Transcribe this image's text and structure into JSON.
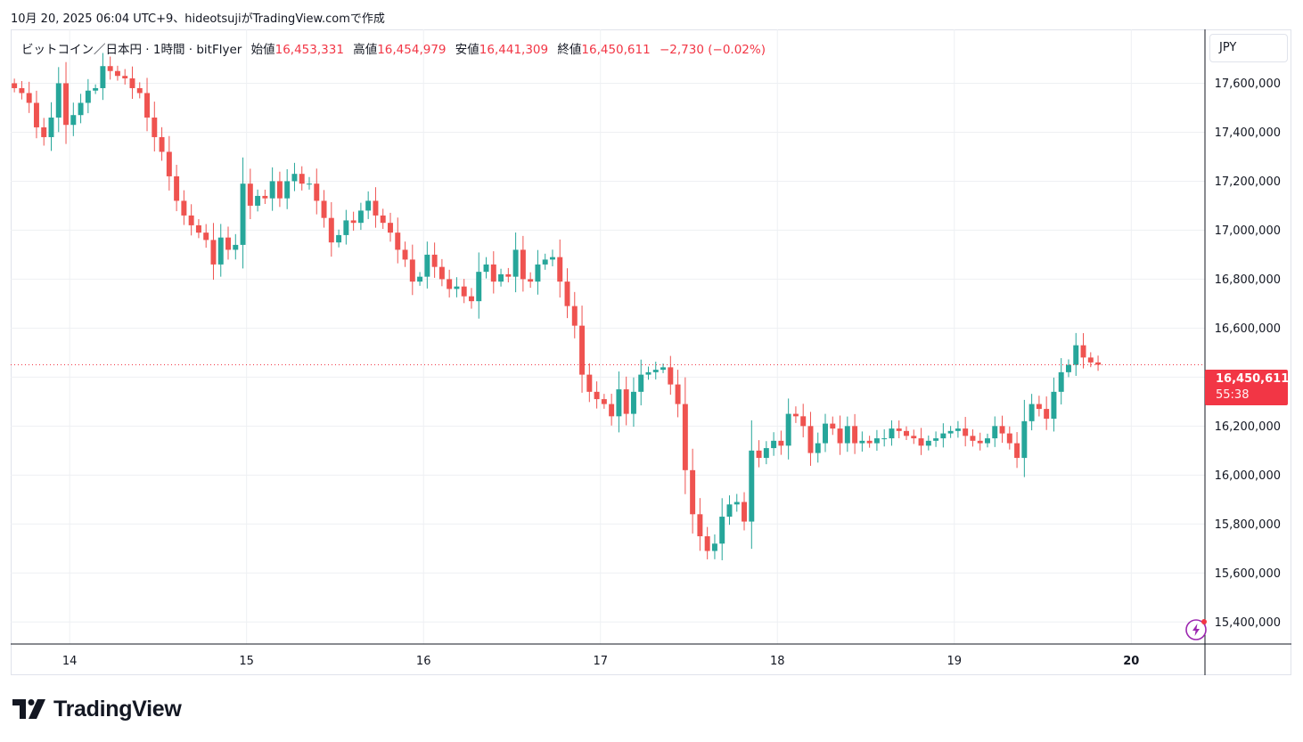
{
  "header": {
    "caption": "10月 20, 2025 06:04 UTC+9、hideotsujiがTradingView.comで作成"
  },
  "legend": {
    "symbol": "ビットコイン／日本円 · 1時間 · bitFlyer",
    "open_label": "始値",
    "open_value": "16,453,331",
    "high_label": "高値",
    "high_value": "16,454,979",
    "low_label": "安値",
    "low_value": "16,441,309",
    "close_label": "終値",
    "close_value": "16,450,611",
    "change": "−2,730 (−0.02%)"
  },
  "currency_button": {
    "label": "JPY"
  },
  "price_tag": {
    "price": "16,450,611",
    "countdown": "55:38"
  },
  "brand": {
    "name": "TradingView"
  },
  "colors": {
    "up": "#26a69a",
    "down": "#ef5350",
    "accent": "#f23645",
    "grid": "#eef0f3"
  },
  "icons": {
    "flash": "lightning-icon"
  },
  "chart_data": {
    "type": "candlestick",
    "y_axis": {
      "ticks": [
        "15,400,000",
        "15,600,000",
        "15,800,000",
        "16,000,000",
        "16,200,000",
        "16,400,000",
        "16,600,000",
        "16,800,000",
        "17,000,000",
        "17,200,000",
        "17,400,000",
        "17,600,000"
      ],
      "range": [
        15310000,
        17820000
      ]
    },
    "x_axis": {
      "ticks": [
        "14",
        "15",
        "16",
        "17",
        "18",
        "19",
        "20"
      ],
      "range_hours": [
        0,
        162
      ],
      "day_hours": [
        8,
        32,
        56,
        80,
        104,
        128,
        152
      ]
    },
    "last_price": 16450611,
    "candles": [
      [
        17600000,
        17580000
      ],
      [
        17580000,
        17560000
      ],
      [
        17560000,
        17520000
      ],
      [
        17520000,
        17420000
      ],
      [
        17420000,
        17380000
      ],
      [
        17380000,
        17460000
      ],
      [
        17460000,
        17600000
      ],
      [
        17600000,
        17430000
      ],
      [
        17430000,
        17470000
      ],
      [
        17470000,
        17520000
      ],
      [
        17520000,
        17570000
      ],
      [
        17570000,
        17580000
      ],
      [
        17580000,
        17670000
      ],
      [
        17670000,
        17650000
      ],
      [
        17650000,
        17630000
      ],
      [
        17630000,
        17620000
      ],
      [
        17620000,
        17580000
      ],
      [
        17580000,
        17560000
      ],
      [
        17560000,
        17460000
      ],
      [
        17460000,
        17380000
      ],
      [
        17380000,
        17320000
      ],
      [
        17320000,
        17220000
      ],
      [
        17220000,
        17120000
      ],
      [
        17120000,
        17060000
      ],
      [
        17060000,
        17020000
      ],
      [
        17020000,
        16990000
      ],
      [
        16990000,
        16960000
      ],
      [
        16960000,
        16860000
      ],
      [
        16860000,
        16970000
      ],
      [
        16970000,
        16920000
      ],
      [
        16920000,
        16940000
      ],
      [
        16940000,
        17190000
      ],
      [
        17190000,
        17100000
      ],
      [
        17100000,
        17140000
      ],
      [
        17140000,
        17130000
      ],
      [
        17130000,
        17200000
      ],
      [
        17200000,
        17130000
      ],
      [
        17130000,
        17200000
      ],
      [
        17200000,
        17230000
      ],
      [
        17230000,
        17190000
      ],
      [
        17190000,
        17190000
      ],
      [
        17190000,
        17120000
      ],
      [
        17120000,
        17050000
      ],
      [
        17050000,
        16950000
      ],
      [
        16950000,
        16980000
      ],
      [
        16980000,
        17040000
      ],
      [
        17040000,
        17030000
      ],
      [
        17030000,
        17080000
      ],
      [
        17080000,
        17120000
      ],
      [
        17120000,
        17060000
      ],
      [
        17060000,
        17030000
      ],
      [
        17030000,
        16990000
      ],
      [
        16990000,
        16920000
      ],
      [
        16920000,
        16880000
      ],
      [
        16880000,
        16790000
      ],
      [
        16790000,
        16810000
      ],
      [
        16810000,
        16900000
      ],
      [
        16900000,
        16850000
      ],
      [
        16850000,
        16800000
      ],
      [
        16800000,
        16760000
      ],
      [
        16760000,
        16770000
      ],
      [
        16770000,
        16730000
      ],
      [
        16730000,
        16710000
      ],
      [
        16710000,
        16830000
      ],
      [
        16830000,
        16860000
      ],
      [
        16860000,
        16790000
      ],
      [
        16790000,
        16820000
      ],
      [
        16820000,
        16810000
      ],
      [
        16810000,
        16920000
      ],
      [
        16920000,
        16800000
      ],
      [
        16800000,
        16790000
      ],
      [
        16790000,
        16860000
      ],
      [
        16860000,
        16880000
      ],
      [
        16880000,
        16890000
      ],
      [
        16890000,
        16790000
      ],
      [
        16790000,
        16690000
      ],
      [
        16690000,
        16610000
      ],
      [
        16610000,
        16410000
      ],
      [
        16410000,
        16340000
      ],
      [
        16340000,
        16310000
      ],
      [
        16310000,
        16290000
      ],
      [
        16290000,
        16240000
      ],
      [
        16240000,
        16350000
      ],
      [
        16350000,
        16250000
      ],
      [
        16250000,
        16340000
      ],
      [
        16340000,
        16410000
      ],
      [
        16410000,
        16420000
      ],
      [
        16420000,
        16430000
      ],
      [
        16430000,
        16440000
      ],
      [
        16440000,
        16370000
      ],
      [
        16370000,
        16290000
      ],
      [
        16290000,
        16020000
      ],
      [
        16020000,
        15840000
      ],
      [
        15840000,
        15750000
      ],
      [
        15750000,
        15690000
      ],
      [
        15690000,
        15720000
      ],
      [
        15720000,
        15830000
      ],
      [
        15830000,
        15880000
      ],
      [
        15880000,
        15890000
      ],
      [
        15890000,
        15810000
      ],
      [
        15810000,
        16100000
      ],
      [
        16100000,
        16070000
      ],
      [
        16070000,
        16110000
      ],
      [
        16110000,
        16140000
      ],
      [
        16140000,
        16120000
      ],
      [
        16120000,
        16250000
      ],
      [
        16250000,
        16240000
      ],
      [
        16240000,
        16200000
      ],
      [
        16200000,
        16090000
      ],
      [
        16090000,
        16130000
      ],
      [
        16130000,
        16210000
      ],
      [
        16210000,
        16190000
      ],
      [
        16190000,
        16130000
      ],
      [
        16130000,
        16200000
      ],
      [
        16200000,
        16130000
      ],
      [
        16130000,
        16140000
      ],
      [
        16140000,
        16130000
      ],
      [
        16130000,
        16150000
      ],
      [
        16150000,
        16150000
      ],
      [
        16150000,
        16190000
      ],
      [
        16190000,
        16180000
      ],
      [
        16180000,
        16160000
      ],
      [
        16160000,
        16150000
      ],
      [
        16150000,
        16120000
      ],
      [
        16120000,
        16140000
      ],
      [
        16140000,
        16150000
      ],
      [
        16150000,
        16170000
      ],
      [
        16170000,
        16180000
      ],
      [
        16180000,
        16190000
      ],
      [
        16190000,
        16160000
      ],
      [
        16160000,
        16140000
      ],
      [
        16140000,
        16130000
      ],
      [
        16130000,
        16150000
      ],
      [
        16150000,
        16200000
      ],
      [
        16200000,
        16170000
      ],
      [
        16170000,
        16130000
      ],
      [
        16130000,
        16070000
      ],
      [
        16070000,
        16220000
      ],
      [
        16220000,
        16290000
      ],
      [
        16290000,
        16270000
      ],
      [
        16270000,
        16230000
      ],
      [
        16230000,
        16340000
      ],
      [
        16340000,
        16420000
      ],
      [
        16420000,
        16450000
      ],
      [
        16450000,
        16530000
      ],
      [
        16530000,
        16480000
      ],
      [
        16480000,
        16460000
      ],
      [
        16460000,
        16450611
      ]
    ]
  }
}
